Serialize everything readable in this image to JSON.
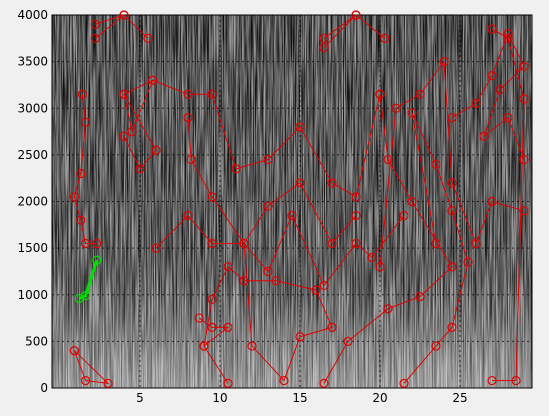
{
  "chart_data": {
    "type": "scatter",
    "xlim": [
      -0.5,
      29.5
    ],
    "ylim": [
      0,
      4000
    ],
    "xticks": [
      5,
      10,
      15,
      20,
      25
    ],
    "yticks": [
      0,
      500,
      1000,
      1500,
      2000,
      2500,
      3000,
      3500,
      4000
    ],
    "grid": true,
    "series": [
      {
        "color": "#e00000",
        "x": [
          2.2,
          4,
          5.5
        ],
        "values": [
          3900,
          4000,
          3750
        ]
      },
      {
        "color": "#e00000",
        "x": [
          2.2,
          4
        ],
        "values": [
          3750,
          4000
        ]
      },
      {
        "color": "#e00000",
        "x": [
          16.5,
          18.5,
          20.3
        ],
        "values": [
          3750,
          4000,
          3750
        ]
      },
      {
        "color": "#e00000",
        "x": [
          16.5,
          18.5
        ],
        "values": [
          3650,
          4000
        ]
      },
      {
        "color": "#e00000",
        "x": [
          1.4,
          1.6,
          1.3,
          0.9,
          1.3,
          1.6,
          2.3
        ],
        "values": [
          3150,
          2850,
          2300,
          2050,
          1800,
          1550,
          1550
        ]
      },
      {
        "color": "#e00000",
        "x": [
          0.9,
          1.6,
          3,
          0.9
        ],
        "values": [
          400,
          80,
          50,
          400
        ]
      },
      {
        "color": "#e00000",
        "x": [
          4,
          5.8,
          4.5,
          4,
          6,
          5,
          4
        ],
        "values": [
          3150,
          3300,
          2750,
          3150,
          2550,
          2350,
          2700
        ]
      },
      {
        "color": "#e00000",
        "x": [
          5.8,
          8,
          9.5,
          11,
          13,
          15,
          17,
          18.5,
          20
        ],
        "values": [
          3300,
          3150,
          3150,
          2350,
          2450,
          2800,
          2200,
          2050,
          3150
        ]
      },
      {
        "color": "#e00000",
        "x": [
          8,
          8.2,
          9.5,
          11.5,
          13,
          15,
          17,
          18.5
        ],
        "values": [
          2900,
          2450,
          2050,
          1550,
          1950,
          2200,
          1550,
          1850
        ]
      },
      {
        "color": "#e00000",
        "x": [
          6,
          8,
          9.5,
          11.5,
          13,
          14.5,
          16.5,
          18.5,
          19.5,
          21.5
        ],
        "values": [
          1500,
          1850,
          1550,
          1550,
          1250,
          1850,
          1100,
          1550,
          1400,
          1850
        ]
      },
      {
        "color": "#e00000",
        "x": [
          9,
          9.5,
          10.5,
          11.5,
          13.5,
          16,
          17,
          15,
          14,
          12,
          11.5
        ],
        "values": [
          450,
          950,
          1300,
          1150,
          1150,
          1050,
          650,
          550,
          80,
          450,
          1550
        ]
      },
      {
        "color": "#e00000",
        "x": [
          8.7,
          9.5,
          10.5,
          9,
          10.5
        ],
        "values": [
          750,
          650,
          650,
          450,
          50
        ]
      },
      {
        "color": "#e00000",
        "x": [
          16.5,
          18,
          20.5,
          22.5,
          24.5,
          22,
          20.5,
          20
        ],
        "values": [
          50,
          500,
          850,
          980,
          1300,
          2000,
          2450,
          3150
        ]
      },
      {
        "color": "#e00000",
        "x": [
          20,
          21,
          22.5,
          24,
          24.5,
          26,
          27,
          29
        ],
        "values": [
          1300,
          3000,
          3150,
          3500,
          2200,
          1550,
          2000,
          1900
        ]
      },
      {
        "color": "#e00000",
        "x": [
          21.5,
          23.5,
          24.5,
          25.5,
          24.5,
          23.5,
          22,
          23.5
        ],
        "values": [
          50,
          450,
          650,
          1350,
          1900,
          2400,
          2950,
          1550
        ]
      },
      {
        "color": "#e00000",
        "x": [
          24.5,
          26,
          27,
          28,
          29,
          27.5,
          26.5,
          28,
          29
        ],
        "values": [
          2900,
          3050,
          3350,
          3800,
          3450,
          3200,
          2700,
          2900,
          2450
        ]
      },
      {
        "color": "#e00000",
        "x": [
          27,
          28,
          29,
          28.5,
          27
        ],
        "values": [
          3850,
          3750,
          3100,
          80,
          80
        ]
      },
      {
        "color": "#00e000",
        "x": [
          1.2,
          1.6,
          2.3
        ],
        "values": [
          960,
          990,
          1370
        ]
      }
    ]
  }
}
